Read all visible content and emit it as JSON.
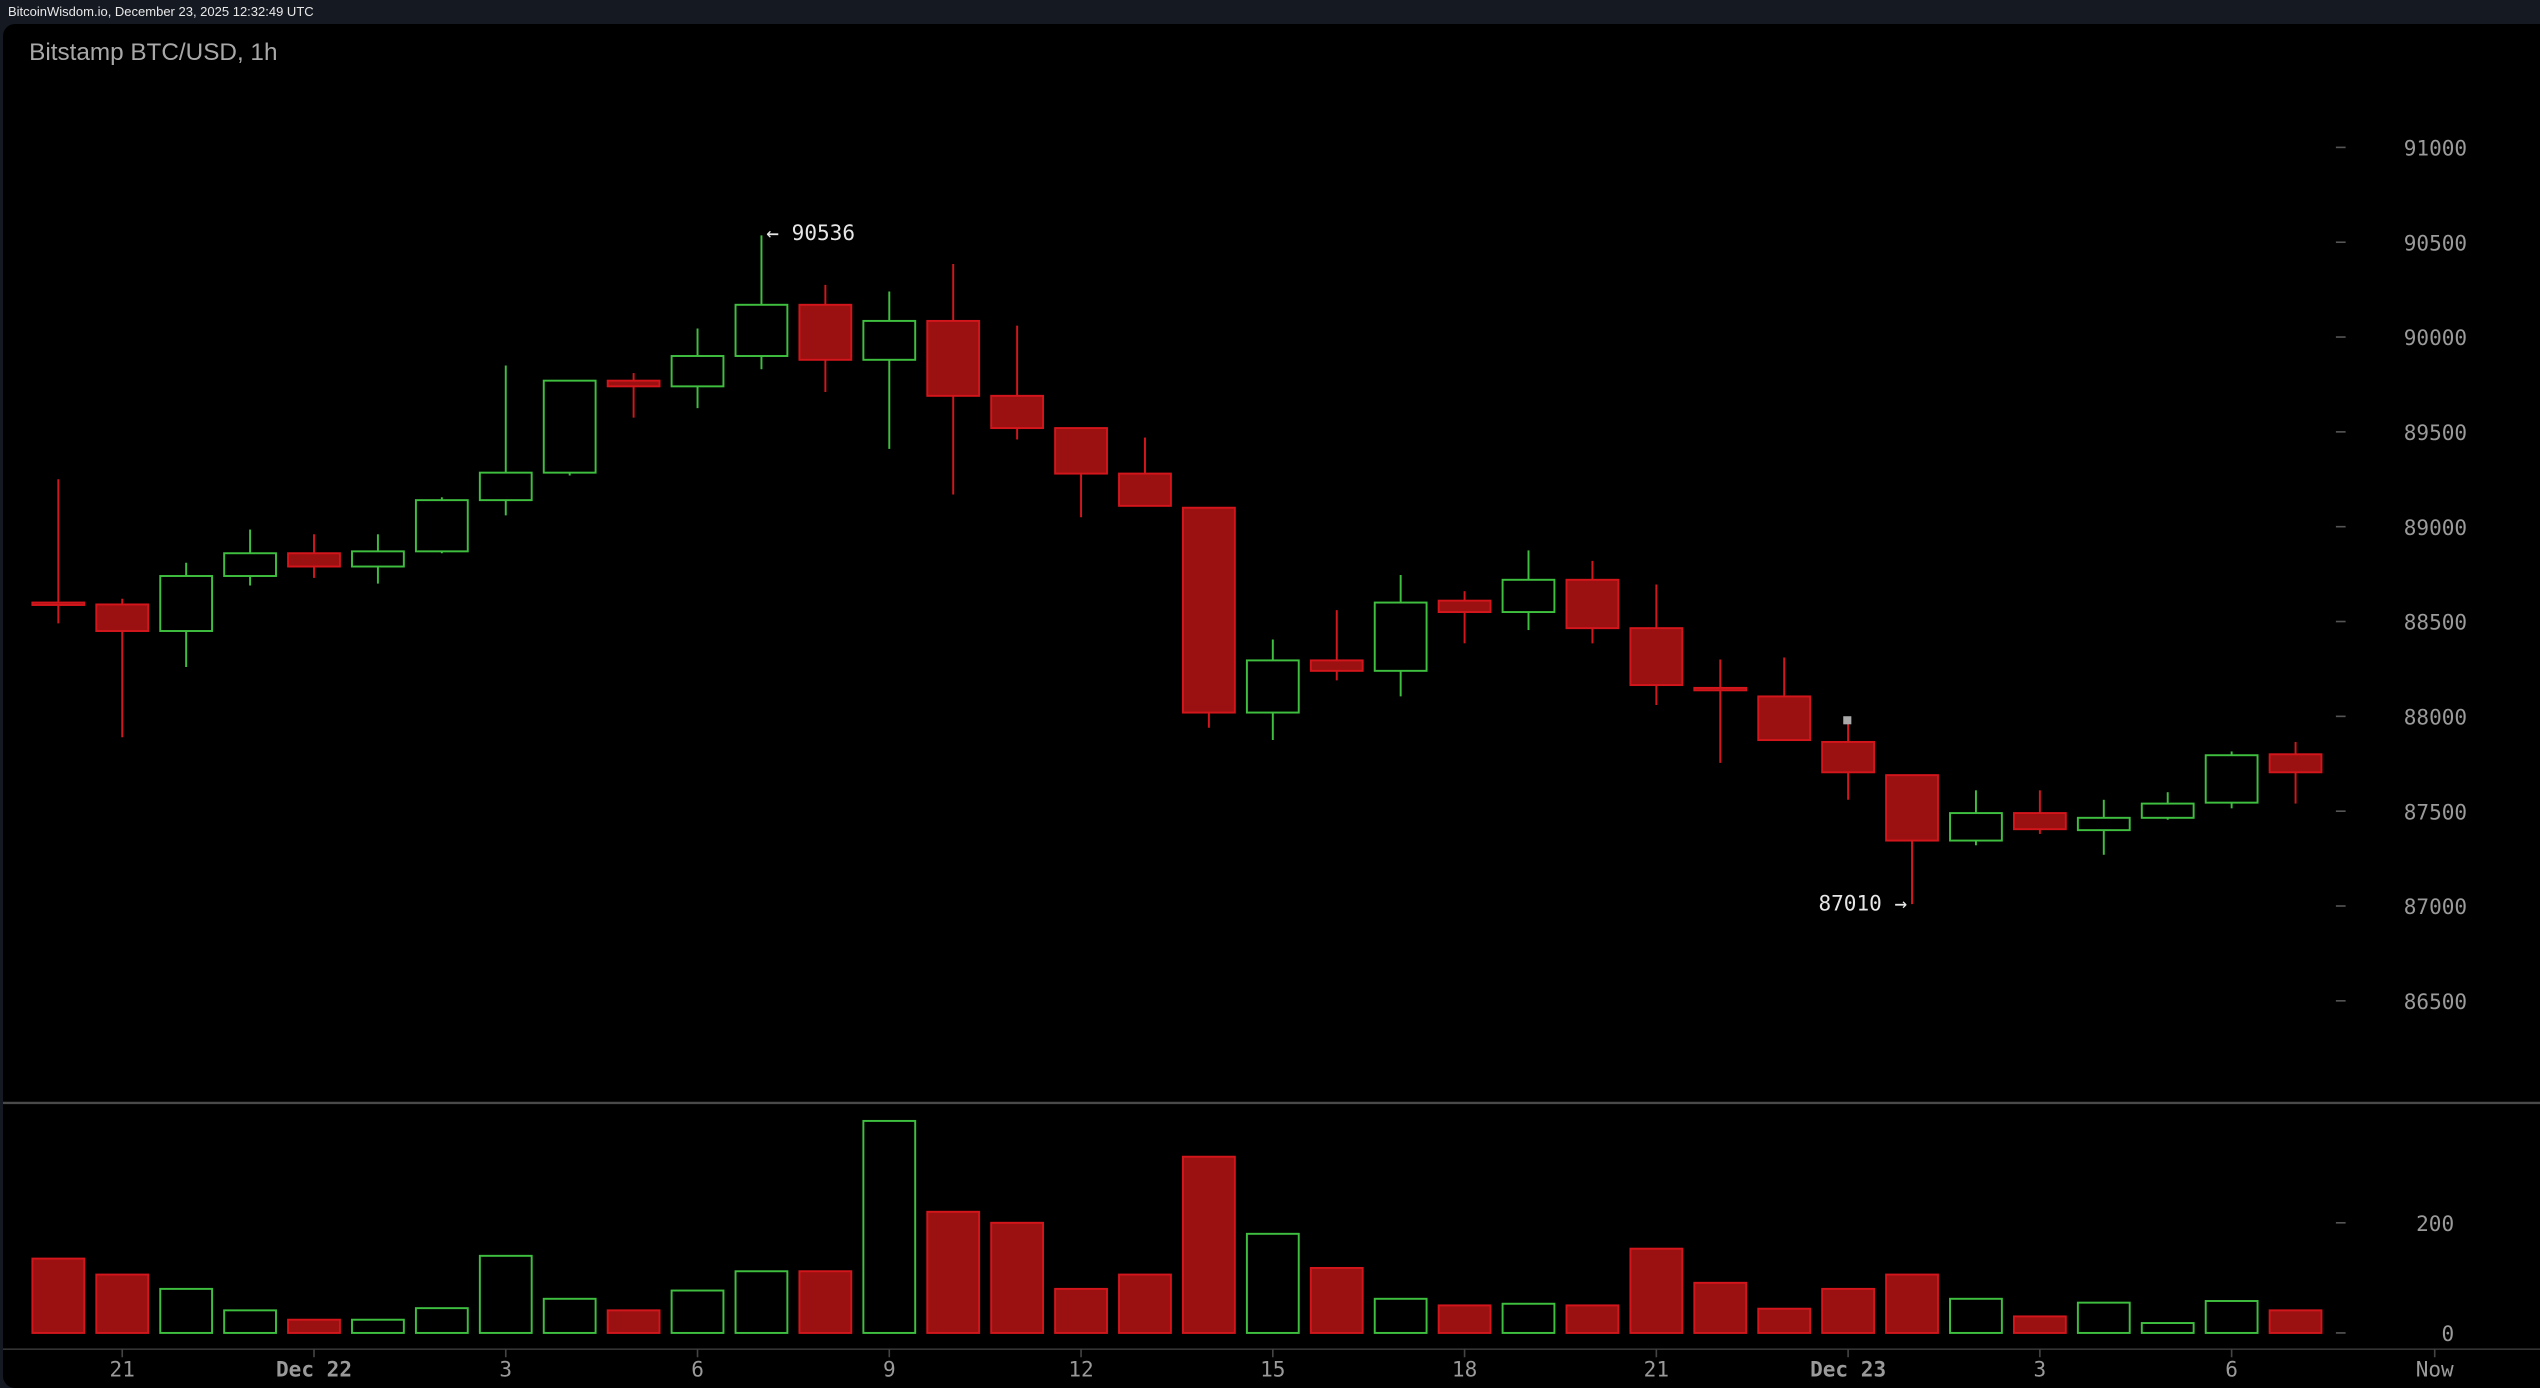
{
  "topbar": {
    "text": "BitcoinWisdom.io, December 23, 2025 12:32:49 UTC"
  },
  "colors": {
    "up": "#3fbf3f",
    "down_fill": "#9b1010",
    "down_stroke": "#d3161c",
    "background": "#000000",
    "axis_text": "#9a9a9a"
  },
  "chart_data": {
    "type": "candlestick",
    "title": "Bitstamp BTC/USD, 1h",
    "price_axis": {
      "ticks": [
        86500,
        87000,
        87500,
        88000,
        88500,
        89000,
        89500,
        90000,
        90500,
        91000
      ],
      "range": [
        86000,
        91300
      ],
      "side": "right"
    },
    "volume_axis": {
      "ticks": [
        0,
        200
      ],
      "range": [
        0,
        400
      ],
      "side": "right"
    },
    "x_tick_labels": [
      {
        "label": "21",
        "candle": 1
      },
      {
        "label": "Dec 22",
        "candle": 4
      },
      {
        "label": "3",
        "candle": 7
      },
      {
        "label": "6",
        "candle": 10
      },
      {
        "label": "9",
        "candle": 13
      },
      {
        "label": "12",
        "candle": 16
      },
      {
        "label": "15",
        "candle": 19
      },
      {
        "label": "18",
        "candle": 22
      },
      {
        "label": "21",
        "candle": 25
      },
      {
        "label": "Dec 23",
        "candle": 28
      },
      {
        "label": "3",
        "candle": 31
      },
      {
        "label": "6",
        "candle": 34
      },
      {
        "label": "Now",
        "candle": 37
      }
    ],
    "annotations": {
      "high": {
        "label": "← 90536",
        "value": 90536,
        "candle": 11
      },
      "low": {
        "label": "87010 →",
        "value": 87010,
        "candle": 29
      }
    },
    "grid": false,
    "candles": [
      {
        "o": 88600,
        "h": 89250,
        "l": 88490,
        "c": 88590,
        "v": 135
      },
      {
        "o": 88590,
        "h": 88620,
        "l": 87890,
        "c": 88450,
        "v": 106
      },
      {
        "o": 88450,
        "h": 88810,
        "l": 88260,
        "c": 88740,
        "v": 80
      },
      {
        "o": 88740,
        "h": 88985,
        "l": 88690,
        "c": 88860,
        "v": 41
      },
      {
        "o": 88860,
        "h": 88960,
        "l": 88730,
        "c": 88790,
        "v": 24
      },
      {
        "o": 88790,
        "h": 88960,
        "l": 88700,
        "c": 88870,
        "v": 24
      },
      {
        "o": 88870,
        "h": 89155,
        "l": 88860,
        "c": 89140,
        "v": 45
      },
      {
        "o": 89140,
        "h": 89850,
        "l": 89060,
        "c": 89285,
        "v": 140
      },
      {
        "o": 89285,
        "h": 89770,
        "l": 89270,
        "c": 89770,
        "v": 62
      },
      {
        "o": 89770,
        "h": 89810,
        "l": 89575,
        "c": 89740,
        "v": 41
      },
      {
        "o": 89740,
        "h": 90045,
        "l": 89625,
        "c": 89900,
        "v": 77
      },
      {
        "o": 89900,
        "h": 90536,
        "l": 89830,
        "c": 90170,
        "v": 112
      },
      {
        "o": 90170,
        "h": 90275,
        "l": 89710,
        "c": 89880,
        "v": 112
      },
      {
        "o": 89880,
        "h": 90240,
        "l": 89410,
        "c": 90085,
        "v": 385
      },
      {
        "o": 90085,
        "h": 90385,
        "l": 89170,
        "c": 89690,
        "v": 220
      },
      {
        "o": 89690,
        "h": 90060,
        "l": 89460,
        "c": 89520,
        "v": 200
      },
      {
        "o": 89520,
        "h": 89520,
        "l": 89050,
        "c": 89280,
        "v": 80
      },
      {
        "o": 89280,
        "h": 89470,
        "l": 89110,
        "c": 89110,
        "v": 106
      },
      {
        "o": 89100,
        "h": 89100,
        "l": 87940,
        "c": 88020,
        "v": 320
      },
      {
        "o": 88020,
        "h": 88405,
        "l": 87875,
        "c": 88295,
        "v": 180
      },
      {
        "o": 88295,
        "h": 88560,
        "l": 88190,
        "c": 88240,
        "v": 118
      },
      {
        "o": 88240,
        "h": 88745,
        "l": 88105,
        "c": 88600,
        "v": 62
      },
      {
        "o": 88610,
        "h": 88660,
        "l": 88385,
        "c": 88550,
        "v": 50
      },
      {
        "o": 88550,
        "h": 88875,
        "l": 88455,
        "c": 88720,
        "v": 53
      },
      {
        "o": 88720,
        "h": 88820,
        "l": 88385,
        "c": 88465,
        "v": 50
      },
      {
        "o": 88465,
        "h": 88695,
        "l": 88060,
        "c": 88165,
        "v": 153
      },
      {
        "o": 88150,
        "h": 88300,
        "l": 87755,
        "c": 88140,
        "v": 91
      },
      {
        "o": 88105,
        "h": 88310,
        "l": 87875,
        "c": 87875,
        "v": 44
      },
      {
        "o": 87865,
        "h": 87975,
        "l": 87560,
        "c": 87705,
        "v": 80
      },
      {
        "o": 87690,
        "h": 87690,
        "l": 87010,
        "c": 87345,
        "v": 106
      },
      {
        "o": 87345,
        "h": 87610,
        "l": 87320,
        "c": 87490,
        "v": 62
      },
      {
        "o": 87490,
        "h": 87610,
        "l": 87380,
        "c": 87405,
        "v": 30
      },
      {
        "o": 87400,
        "h": 87560,
        "l": 87270,
        "c": 87465,
        "v": 55
      },
      {
        "o": 87465,
        "h": 87600,
        "l": 87455,
        "c": 87540,
        "v": 18
      },
      {
        "o": 87545,
        "h": 87815,
        "l": 87515,
        "c": 87795,
        "v": 58
      },
      {
        "o": 87800,
        "h": 87865,
        "l": 87540,
        "c": 87705,
        "v": 41
      }
    ]
  }
}
